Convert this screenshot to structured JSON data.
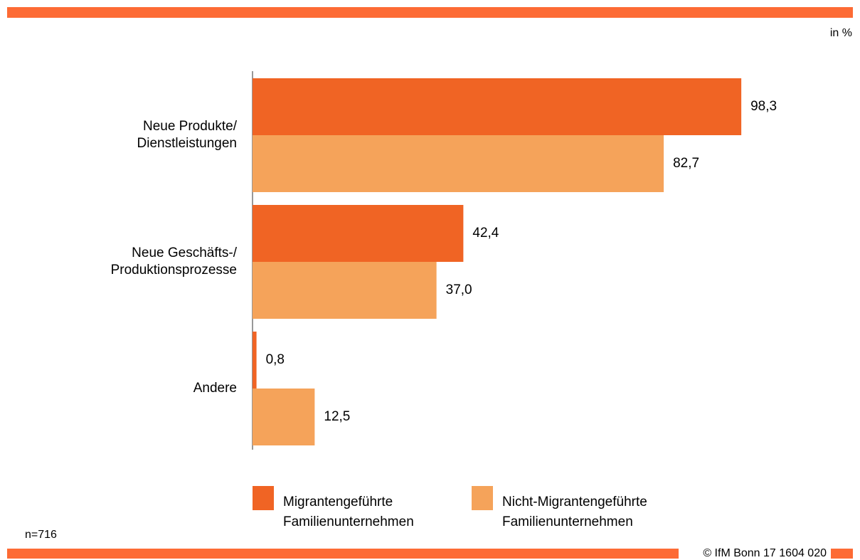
{
  "chart_data": {
    "type": "bar",
    "orientation": "horizontal",
    "unit_label": "in %",
    "categories": [
      "Neue Produkte/ Dienstleistungen",
      "Neue Geschäfts-/ Produktionsprozesse",
      "Andere"
    ],
    "series": [
      {
        "name": "Migrantengeführte Familienunternehmen",
        "color": "#f06424",
        "values": [
          98.3,
          42.4,
          0.8
        ],
        "value_labels": [
          "98,3",
          "42,4",
          "0,8"
        ]
      },
      {
        "name": "Nicht-Migrantengeführte Familienunternehmen",
        "color": "#f5a35a",
        "values": [
          82.7,
          37.0,
          12.5
        ],
        "value_labels": [
          "82,7",
          "37,0",
          "12,5"
        ]
      }
    ],
    "xlim": [
      0,
      100
    ],
    "note": "n=716",
    "source": "© IfM Bonn 17 1604 020",
    "legend": "bottom"
  }
}
